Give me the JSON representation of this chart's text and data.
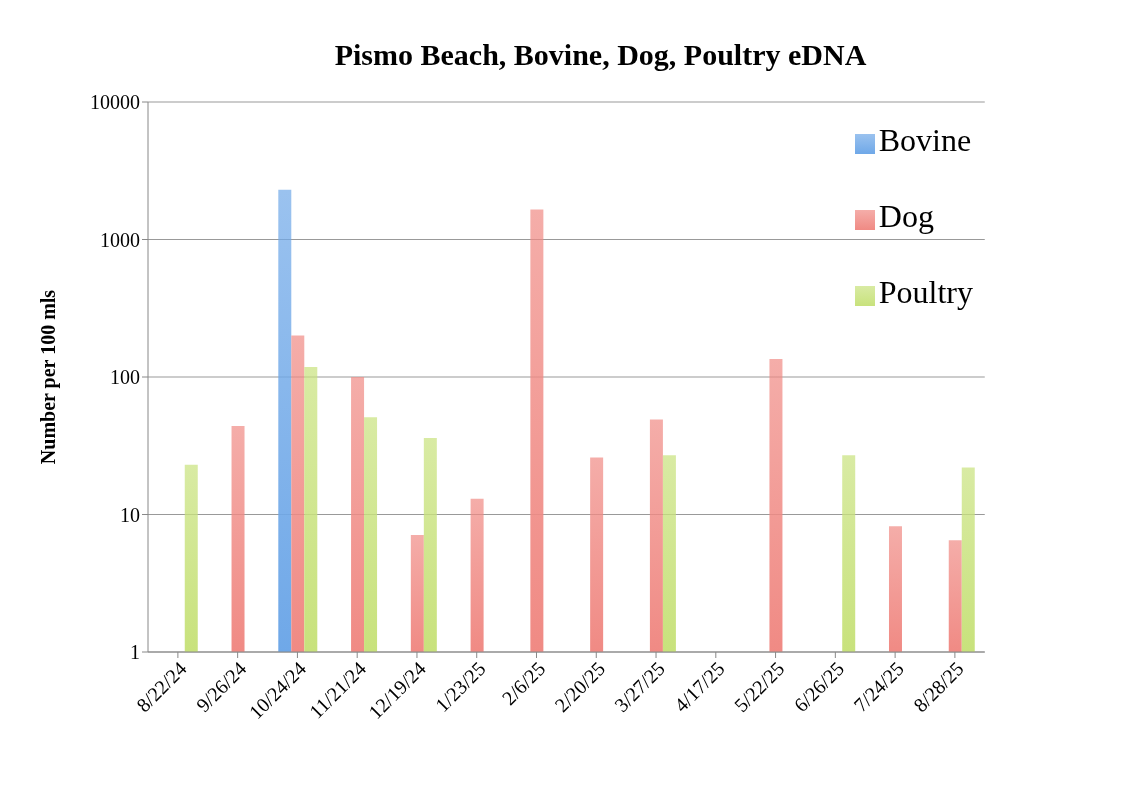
{
  "chart_data": {
    "type": "bar",
    "title": "Pismo Beach, Bovine, Dog, Poultry eDNA",
    "ylabel": "Number per 100 mls",
    "categories": [
      "8/22/24",
      "9/26/24",
      "10/24/24",
      "11/21/24",
      "12/19/24",
      "1/23/25",
      "2/6/25",
      "2/20/25",
      "3/27/25",
      "4/17/25",
      "5/22/25",
      "6/26/25",
      "7/24/25",
      "8/28/25"
    ],
    "series": [
      {
        "name": "Bovine",
        "color": "#6fa8e8",
        "values": [
          null,
          null,
          2300,
          null,
          null,
          null,
          null,
          null,
          null,
          null,
          null,
          null,
          null,
          null
        ]
      },
      {
        "name": "Dog",
        "color": "#f08a84",
        "values": [
          null,
          44,
          200,
          100,
          7.1,
          13,
          1650,
          26,
          49,
          null,
          135,
          null,
          8.2,
          6.5
        ]
      },
      {
        "name": "Poultry",
        "color": "#c8e27c",
        "values": [
          23,
          null,
          118,
          51,
          36,
          null,
          null,
          null,
          27,
          null,
          null,
          27,
          null,
          22
        ]
      }
    ],
    "log": true,
    "ylim": [
      1,
      10000
    ],
    "yticks": [
      1,
      10,
      100,
      1000,
      10000
    ],
    "grid": "y",
    "legend": "top right"
  }
}
